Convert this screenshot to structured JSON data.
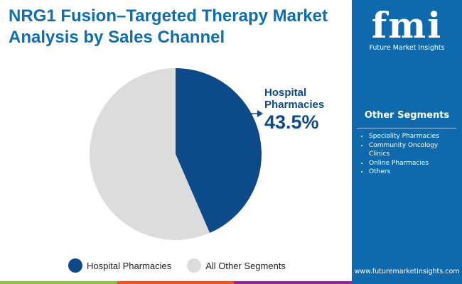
{
  "title": "NRG1 Fusion–Targeted Therapy Market Analysis by Sales Channel",
  "sidebar": {
    "logo_text": "Future Market Insights",
    "segments_title": "Other Segments",
    "segments": [
      "Speciality Pharmacies",
      "Community Oncology Clinics",
      "Online Pharmacies",
      "Others"
    ],
    "url": "www.futuremarketinsights.com"
  },
  "colors": {
    "hospital": "#0d4a8a",
    "other": "#dcdcdc",
    "sidebar": "#0f6aad",
    "title": "#0d6fb0"
  },
  "chart_data": {
    "type": "pie",
    "series": [
      {
        "name": "Hospital Pharmacies",
        "value": 43.5
      },
      {
        "name": "All Other Segments",
        "value": 56.5
      }
    ],
    "callout": {
      "name": "Hospital Pharmacies",
      "value_label": "43.5%"
    },
    "legend": "bottom"
  }
}
